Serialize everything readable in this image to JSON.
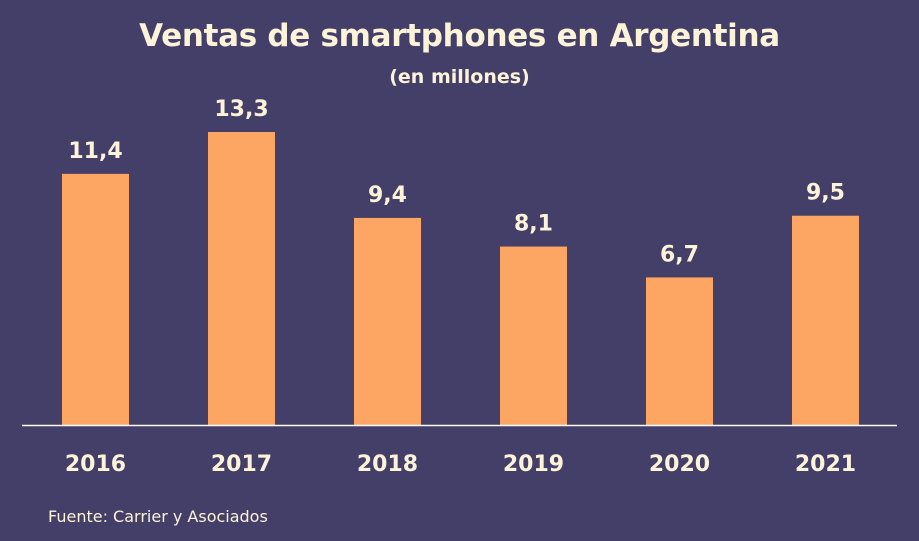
{
  "chart_data": {
    "type": "bar",
    "title": "Ventas de smartphones en Argentina",
    "subtitle": "(en millones)",
    "categories": [
      "2016",
      "2017",
      "2018",
      "2019",
      "2020",
      "2021"
    ],
    "values": [
      11.4,
      13.3,
      9.4,
      8.1,
      6.7,
      9.5
    ],
    "value_labels": [
      "11,4",
      "13,3",
      "9,4",
      "8,1",
      "6,7",
      "9,5"
    ],
    "xlabel": "",
    "ylabel": "",
    "ylim": [
      0,
      15
    ],
    "grid": false,
    "legend": "none",
    "source": "Fuente: Carrier y Asociados"
  },
  "colors": {
    "background": "#433f68",
    "bar": "#fda562",
    "text": "#fdf3d9",
    "axis": "#ffffff"
  }
}
